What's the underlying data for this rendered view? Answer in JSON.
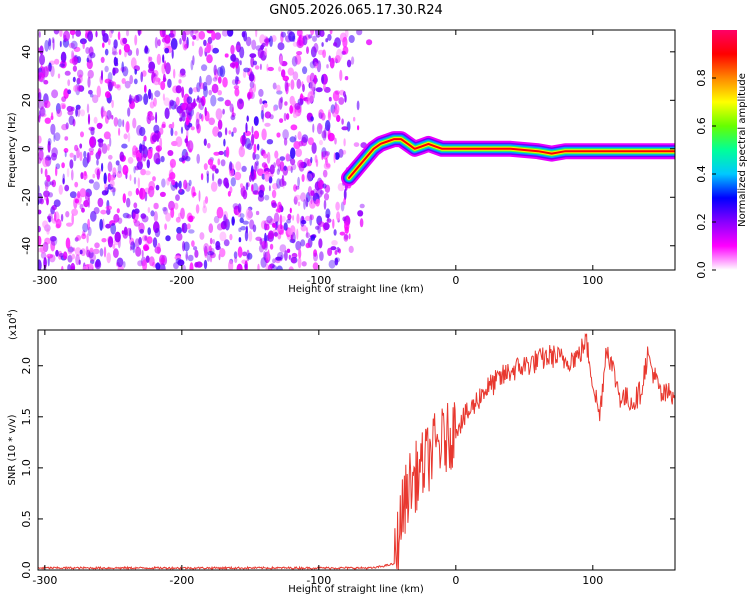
{
  "title": "GN05.2026.065.17.30.R24",
  "chart_data": [
    {
      "type": "heatmap",
      "xlabel": "Height of straight line (km)",
      "ylabel": "Frequency (Hz)",
      "xlim": [
        -305,
        160
      ],
      "ylim": [
        -50,
        49
      ],
      "xticks": [
        -300,
        -200,
        -100,
        0,
        100
      ],
      "yticks": [
        -40,
        -20,
        0,
        20,
        40
      ],
      "colorbar": {
        "label": "Normalized spectral amplitude",
        "range": [
          0.0,
          1.0
        ],
        "ticks": [
          "0.0",
          "0.2",
          "0.4",
          "0.6",
          "0.8"
        ],
        "colormap": [
          "#ffffff",
          "#ff00ff",
          "#8800ff",
          "#0000ff",
          "#00c8ff",
          "#00ff99",
          "#66ff00",
          "#ffff00",
          "#ff8800",
          "#ff0000",
          "#ff0066"
        ]
      },
      "noise_region": {
        "x_from": -305,
        "x_to": -62,
        "amplitude": 0.15
      },
      "signal_trace": {
        "x": [
          -78,
          -72,
          -66,
          -60,
          -55,
          -50,
          -45,
          -40,
          -35,
          -30,
          -25,
          -20,
          -15,
          -10,
          0,
          20,
          40,
          60,
          70,
          80,
          100,
          120,
          140,
          160
        ],
        "y": [
          -12,
          -8,
          -4,
          0,
          2,
          3,
          4,
          4,
          2,
          0,
          1,
          2,
          1,
          0,
          0,
          0,
          0,
          -1,
          -2,
          -1,
          -1,
          -1,
          -1,
          -1
        ],
        "amplitude": 1.0
      }
    },
    {
      "type": "line",
      "xlabel": "Height of straight line (km)",
      "ylabel": "SNR (10 * v/v)",
      "y_multiplier": "(x10",
      "y_multiplier_exp": "4",
      "xlim": [
        -305,
        160
      ],
      "ylim": [
        0,
        2.35
      ],
      "xticks": [
        -300,
        -200,
        -100,
        0,
        100
      ],
      "yticks": [
        "0.0",
        "0.5",
        "1.0",
        "1.5",
        "2.0"
      ],
      "color": "#e8382f",
      "series": [
        {
          "x": [
            -305,
            -60,
            -45,
            -40,
            -35,
            -30,
            -25,
            -20,
            -15,
            -10,
            -5,
            0,
            10,
            20,
            30,
            40,
            50,
            60,
            70,
            80,
            90,
            95,
            100,
            105,
            110,
            120,
            130,
            135,
            140,
            150,
            160
          ],
          "y": [
            0.02,
            0.02,
            0.06,
            0.5,
            0.8,
            0.9,
            1.0,
            1.1,
            1.2,
            1.25,
            1.3,
            1.4,
            1.55,
            1.75,
            1.85,
            1.95,
            2.0,
            2.05,
            2.1,
            2.05,
            2.1,
            2.25,
            1.85,
            1.5,
            2.2,
            1.7,
            1.65,
            1.75,
            2.1,
            1.7,
            1.75
          ]
        }
      ]
    }
  ]
}
